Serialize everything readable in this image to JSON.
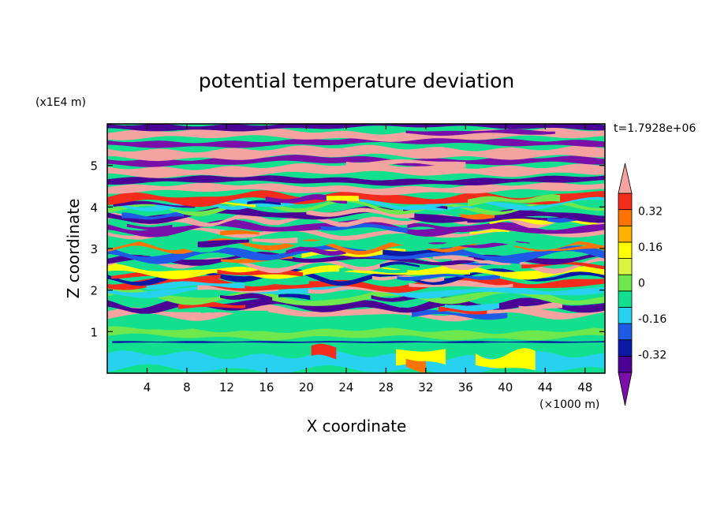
{
  "chart_data": {
    "type": "heatmap",
    "title": "potential temperature deviation",
    "xlabel": "X coordinate",
    "ylabel": "Z coordinate",
    "x_unit": "(×1000 m)",
    "y_unit": "(x1E4 m)",
    "time_label": "t=1.7928e+06",
    "xlim": [
      0,
      50
    ],
    "ylim": [
      0,
      6
    ],
    "x_ticks": [
      "4",
      "8",
      "12",
      "16",
      "20",
      "24",
      "28",
      "32",
      "36",
      "40",
      "44",
      "48"
    ],
    "x_tick_values": [
      4,
      8,
      12,
      16,
      20,
      24,
      28,
      32,
      36,
      40,
      44,
      48
    ],
    "y_ticks": [
      "1",
      "2",
      "3",
      "4",
      "5"
    ],
    "y_tick_values": [
      1,
      2,
      3,
      4,
      5
    ],
    "colorbar": {
      "levels": [
        -0.48,
        -0.4,
        -0.32,
        -0.24,
        -0.16,
        -0.08,
        0,
        0.08,
        0.16,
        0.24,
        0.32,
        0.4,
        0.48
      ],
      "labels": [
        "0.32",
        "0.16",
        "0",
        "-0.16",
        "-0.32"
      ],
      "label_values": [
        0.32,
        0.16,
        0,
        -0.16,
        -0.32
      ],
      "colors": [
        "#7a0ea8",
        "#4b0096",
        "#0b1aa6",
        "#1e5ae6",
        "#27d2f0",
        "#13e08f",
        "#6ee84d",
        "#d9f540",
        "#fffe00",
        "#ffb000",
        "#ff7300",
        "#f52b1c",
        "#f4a3a0"
      ]
    },
    "field_description": "Layered stratified field: deep purple and pink bands above z≈4.5; mixed multicolored wavy layers between z≈1.4 and 4.5; greens/cyans near surface with a dark blue line near z≈0.75 and warm yellow/orange patches near x≈30–40 at the bottom."
  }
}
